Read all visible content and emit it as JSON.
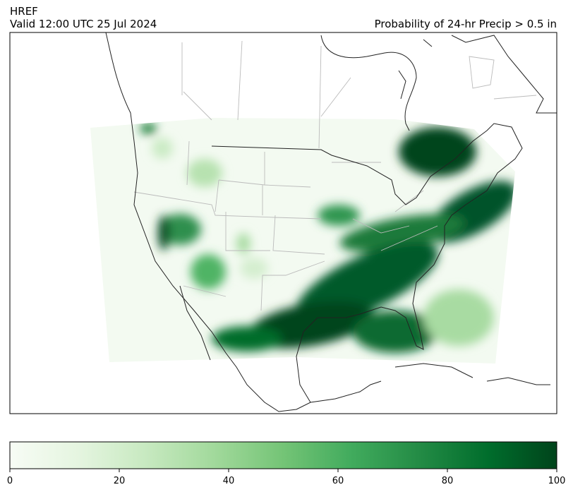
{
  "header": {
    "model": "HREF",
    "valid": "Valid 12:00 UTC 25 Jul 2024",
    "title": "Probability of 24-hr Precip > 0.5 in"
  },
  "colorbar": {
    "range": [
      0,
      100
    ],
    "ticks": [
      0,
      20,
      40,
      60,
      80,
      100
    ]
  }
}
